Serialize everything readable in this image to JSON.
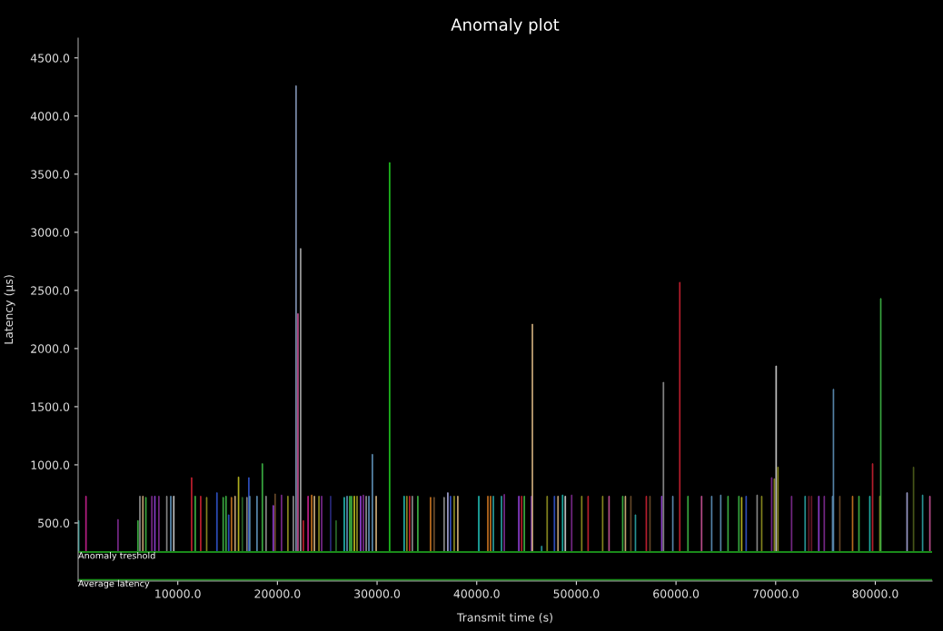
{
  "chart_data": {
    "type": "bar",
    "title": "Anomaly plot",
    "xlabel": "Transmit time (s)",
    "ylabel": "Latency (µs)",
    "xlim": [
      0,
      85700
    ],
    "ylim": [
      0,
      4670
    ],
    "xticks": [
      {
        "value": 10000,
        "label": "10000.0"
      },
      {
        "value": 20000,
        "label": "20000.0"
      },
      {
        "value": 30000,
        "label": "30000.0"
      },
      {
        "value": 40000,
        "label": "40000.0"
      },
      {
        "value": 50000,
        "label": "50000.0"
      },
      {
        "value": 60000,
        "label": "60000.0"
      },
      {
        "value": 70000,
        "label": "70000.0"
      },
      {
        "value": 80000,
        "label": "80000.0"
      }
    ],
    "yticks": [
      {
        "value": 500,
        "label": "500.0"
      },
      {
        "value": 1000,
        "label": "1000.0"
      },
      {
        "value": 1500,
        "label": "1500.0"
      },
      {
        "value": 2000,
        "label": "2000.0"
      },
      {
        "value": 2500,
        "label": "2500.0"
      },
      {
        "value": 3000,
        "label": "3000.0"
      },
      {
        "value": 3500,
        "label": "3500.0"
      },
      {
        "value": 4000,
        "label": "4000.0"
      },
      {
        "value": 4500,
        "label": "4500.0"
      }
    ],
    "x": [
      50,
      790,
      4000,
      6000,
      6200,
      6500,
      6800,
      7400,
      7700,
      8100,
      8900,
      9300,
      9600,
      11390,
      11750,
      12300,
      12900,
      13930,
      14560,
      14840,
      15110,
      15390,
      15750,
      16100,
      16480,
      16940,
      17130,
      17220,
      17950,
      18490,
      18860,
      19590,
      19770,
      20410,
      21050,
      21600,
      21870,
      22060,
      22330,
      22600,
      23080,
      23440,
      23710,
      24170,
      24440,
      25340,
      25890,
      26710,
      26990,
      27260,
      27440,
      27720,
      27990,
      28350,
      28630,
      28910,
      29180,
      29530,
      29910,
      31260,
      32720,
      32990,
      33270,
      33540,
      34090,
      35370,
      35730,
      36730,
      37100,
      37370,
      37740,
      38100,
      40210,
      41120,
      41390,
      41670,
      42490,
      42770,
      44230,
      44510,
      44780,
      45510,
      45590,
      46520,
      47070,
      47800,
      48160,
      48620,
      48890,
      49530,
      50540,
      51180,
      52640,
      53280,
      54650,
      54920,
      55470,
      55930,
      57020,
      57390,
      58570,
      58740,
      59680,
      60380,
      61200,
      62570,
      63580,
      64490,
      65220,
      66310,
      66590,
      67040,
      68140,
      68600,
      69600,
      69870,
      70050,
      70230,
      71600,
      72960,
      73330,
      73600,
      74330,
      74880,
      75710,
      75800,
      76440,
      77720,
      78360,
      79450,
      79730,
      80460,
      80550,
      83190,
      83840,
      84750,
      85480
    ],
    "base": [
      250,
      250,
      250,
      250,
      250,
      250,
      250,
      250,
      250,
      250,
      250,
      250,
      250,
      250,
      250,
      250,
      250,
      250,
      250,
      250,
      250,
      250,
      250,
      250,
      250,
      250,
      250,
      250,
      250,
      250,
      250,
      250,
      250,
      250,
      250,
      250,
      250,
      250,
      250,
      250,
      250,
      250,
      250,
      250,
      250,
      250,
      250,
      250,
      250,
      250,
      250,
      250,
      250,
      250,
      250,
      250,
      250,
      250,
      250,
      250,
      250,
      250,
      250,
      250,
      250,
      250,
      250,
      250,
      250,
      250,
      250,
      250,
      250,
      250,
      250,
      250,
      250,
      250,
      250,
      250,
      250,
      250,
      250,
      250,
      250,
      250,
      250,
      250,
      250,
      250,
      250,
      250,
      250,
      250,
      250,
      250,
      250,
      250,
      250,
      250,
      250,
      250,
      250,
      250,
      250,
      250,
      250,
      250,
      250,
      250,
      250,
      250,
      250,
      250,
      250,
      250,
      250,
      250,
      250,
      250,
      250,
      250,
      250,
      250,
      250,
      250,
      250,
      250,
      250,
      250,
      250,
      250,
      250,
      250,
      250,
      250,
      250
    ],
    "values": [
      270,
      480,
      280,
      270,
      480,
      480,
      470,
      480,
      480,
      480,
      480,
      480,
      480,
      640,
      480,
      480,
      470,
      510,
      470,
      480,
      320,
      470,
      480,
      645,
      470,
      470,
      640,
      480,
      480,
      760,
      480,
      400,
      500,
      490,
      480,
      480,
      4010,
      2050,
      2610,
      270,
      480,
      490,
      480,
      480,
      480,
      480,
      270,
      470,
      480,
      480,
      480,
      480,
      480,
      480,
      490,
      480,
      480,
      840,
      480,
      3350,
      480,
      480,
      480,
      480,
      480,
      470,
      470,
      470,
      510,
      480,
      480,
      480,
      480,
      480,
      480,
      480,
      480,
      495,
      480,
      480,
      480,
      480,
      1960,
      50,
      480,
      480,
      480,
      490,
      480,
      490,
      480,
      480,
      480,
      480,
      480,
      480,
      480,
      320,
      480,
      480,
      480,
      1460,
      480,
      2320,
      480,
      480,
      480,
      490,
      480,
      480,
      470,
      480,
      490,
      480,
      640,
      630,
      1600,
      730,
      480,
      480,
      480,
      480,
      480,
      480,
      480,
      1400,
      480,
      480,
      480,
      480,
      760,
      480,
      2180,
      510,
      730,
      490,
      480
    ],
    "colors": [
      "#20b2aa",
      "#c0208a",
      "#7a2a8a",
      "#3cb043",
      "#8a8a8a",
      "#c8a878",
      "#3cb043",
      "#7a2a8a",
      "#9040d0",
      "#7a2a8a",
      "#8a8a8a",
      "#5a8ab0",
      "#c8c8c8",
      "#c02030",
      "#3cb043",
      "#c02030",
      "#8a8a20",
      "#3050c0",
      "#3cb043",
      "#3cb043",
      "#3050c0",
      "#c07020",
      "#c8a878",
      "#b8b820",
      "#2a6a2a",
      "#8a8a8a",
      "#3050c0",
      "#5a8ab0",
      "#5a8ab0",
      "#3cb043",
      "#8a8a8a",
      "#9040d0",
      "#6a4a2a",
      "#7a2a8a",
      "#8a8a20",
      "#8a8a8a",
      "#8090b0",
      "#c05090",
      "#a0a0a0",
      "#c02030",
      "#c0208a",
      "#c07020",
      "#c8a878",
      "#8a8a20",
      "#7a2a8a",
      "#2a2a7a",
      "#2a6a2a",
      "#20b2aa",
      "#5a8ab0",
      "#3cb043",
      "#3cb043",
      "#b8b820",
      "#8a8a20",
      "#9040d0",
      "#7a2a8a",
      "#8a8a8a",
      "#5a8ab0",
      "#5a8ab0",
      "#c8a878",
      "#20c020",
      "#20b2aa",
      "#8a8a20",
      "#c02030",
      "#8a8a8a",
      "#3cb043",
      "#c07020",
      "#6a4a2a",
      "#8a8a8a",
      "#a0a0d0",
      "#3050c0",
      "#8a8a20",
      "#c8a878",
      "#20b2aa",
      "#c07020",
      "#c07020",
      "#2a9a9a",
      "#2a9a9a",
      "#7a2a8a",
      "#9040d0",
      "#c02030",
      "#3cb043",
      "#9040d0",
      "#c8a878",
      "#2a9a9a",
      "#8a8a20",
      "#3050c0",
      "#c8a878",
      "#20b2aa",
      "#c8c8c8",
      "#7a2a8a",
      "#8a8a20",
      "#c02030",
      "#8a8a20",
      "#c05090",
      "#3cb043",
      "#c8a878",
      "#6a4a2a",
      "#2a9a9a",
      "#c02030",
      "#6a4a2a",
      "#9040d0",
      "#8a8a8a",
      "#5a8ab0",
      "#c02030",
      "#3cb043",
      "#c05090",
      "#5a8ab0",
      "#5a8ab0",
      "#3cb043",
      "#3cb043",
      "#b8b820",
      "#3050c0",
      "#8a8a8a",
      "#8a8a20",
      "#7a2a8a",
      "#8a8a20",
      "#c8c8c8",
      "#8a8a20",
      "#7a2a8a",
      "#2a9a9a",
      "#6a1a2a",
      "#6a1a2a",
      "#9040d0",
      "#7a2a8a",
      "#5a8ab0",
      "#5a8ab0",
      "#6a4a2a",
      "#c07020",
      "#3cb043",
      "#20b2aa",
      "#c02030",
      "#8a8a20",
      "#3cb043",
      "#a0a0d0",
      "#4a5a1a",
      "#2a9a9a",
      "#c05090"
    ],
    "ref_lines": [
      {
        "axis": "y",
        "value": 250,
        "label": "Anomaly treshold",
        "color": "#1a8a1a"
      },
      {
        "axis": "y",
        "value": 10,
        "label": "Average latency",
        "color": "#1a8a1a"
      }
    ]
  }
}
